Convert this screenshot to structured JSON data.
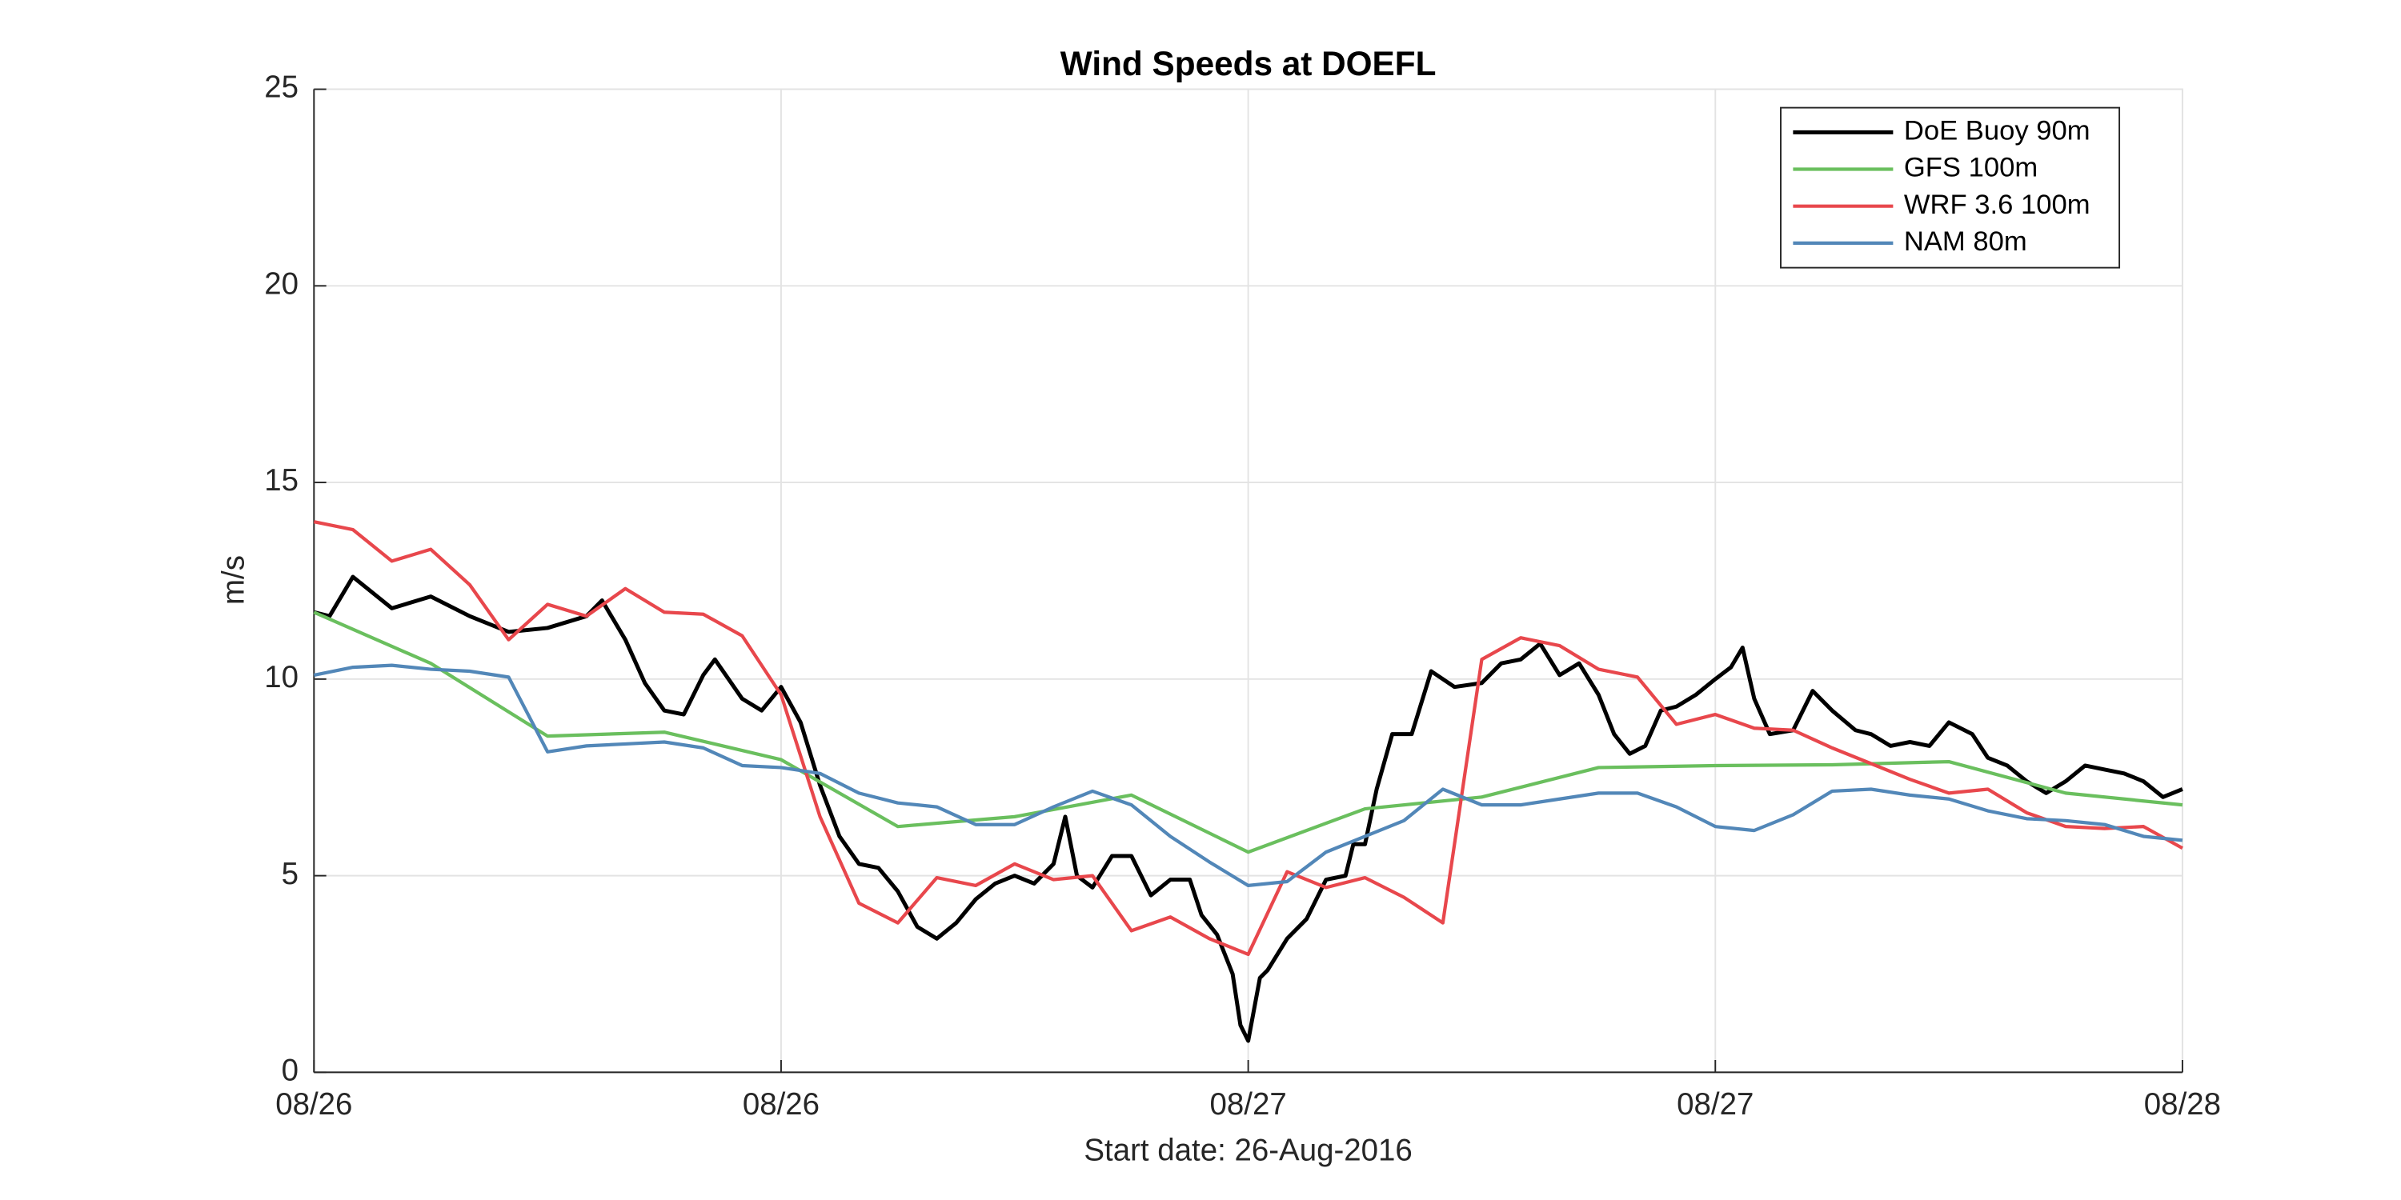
{
  "chart_data": {
    "type": "line",
    "title": "Wind Speeds at DOEFL",
    "x_label": "Start date: 26-Aug-2016",
    "y_label": "m/s",
    "xlim": [
      0,
      48
    ],
    "ylim": [
      0,
      25
    ],
    "xticks": [
      {
        "value": 0,
        "label": "08/26"
      },
      {
        "value": 12,
        "label": "08/26"
      },
      {
        "value": 24,
        "label": "08/27"
      },
      {
        "value": 36,
        "label": "08/27"
      },
      {
        "value": 48,
        "label": "08/28"
      }
    ],
    "yticks": [
      0,
      5,
      10,
      15,
      20,
      25
    ],
    "grid": true,
    "legend": "upper right",
    "series": [
      {
        "name": "DoE Buoy 90m",
        "color": "#000000",
        "x": [
          0,
          0.4,
          1,
          2,
          3,
          4,
          5,
          6,
          7,
          7.4,
          8,
          8.5,
          9,
          9.5,
          10,
          10.3,
          11,
          11.5,
          12,
          12.5,
          13,
          13.5,
          14,
          14.5,
          15,
          15.5,
          16,
          16.5,
          17,
          17.5,
          18,
          18.5,
          19,
          19.3,
          19.6,
          20,
          20.5,
          21,
          21.5,
          22,
          22.5,
          22.8,
          23.2,
          23.6,
          23.8,
          24,
          24.3,
          24.5,
          25,
          25.5,
          26,
          26.5,
          26.7,
          27,
          27.3,
          27.7,
          28.2,
          28.7,
          29.3,
          30,
          30.5,
          31,
          31.5,
          32,
          32.5,
          33,
          33.4,
          33.8,
          34.2,
          34.6,
          35,
          35.5,
          36,
          36.4,
          36.7,
          37,
          37.4,
          38,
          38.5,
          39,
          39.6,
          40,
          40.5,
          41,
          41.5,
          42,
          42.6,
          43,
          43.5,
          44,
          44.5,
          45,
          45.5,
          46,
          46.5,
          47,
          47.5,
          48
        ],
        "values": [
          11.7,
          11.6,
          12.6,
          11.8,
          12.1,
          11.6,
          11.2,
          11.3,
          11.6,
          12.0,
          11.0,
          9.9,
          9.2,
          9.1,
          10.1,
          10.5,
          9.5,
          9.2,
          9.8,
          8.9,
          7.3,
          6.0,
          5.3,
          5.2,
          4.6,
          3.7,
          3.4,
          3.8,
          4.4,
          4.8,
          5.0,
          4.8,
          5.3,
          6.5,
          5.0,
          4.7,
          5.5,
          5.5,
          4.5,
          4.9,
          4.9,
          4.0,
          3.5,
          2.5,
          1.2,
          0.8,
          2.4,
          2.6,
          3.4,
          3.9,
          4.9,
          5.0,
          5.8,
          5.8,
          7.2,
          8.6,
          8.6,
          10.2,
          9.8,
          9.9,
          10.4,
          10.5,
          10.9,
          10.1,
          10.4,
          9.6,
          8.6,
          8.1,
          8.3,
          9.2,
          9.3,
          9.6,
          10.0,
          10.3,
          10.8,
          9.5,
          8.6,
          8.7,
          9.7,
          9.2,
          8.7,
          8.6,
          8.3,
          8.4,
          8.3,
          8.9,
          8.6,
          8.0,
          7.8,
          7.4,
          7.1,
          7.4,
          7.8,
          7.7,
          7.6,
          7.4,
          7.0,
          7.2
        ]
      },
      {
        "name": "GFS 100m",
        "color": "#6abf5e",
        "x": [
          0,
          3,
          6,
          9,
          12,
          15,
          18,
          21,
          24,
          27,
          30,
          33,
          36,
          39,
          42,
          45,
          48
        ],
        "values": [
          11.7,
          10.4,
          8.55,
          8.65,
          7.95,
          6.25,
          6.5,
          7.05,
          5.6,
          6.7,
          7.0,
          7.75,
          7.8,
          7.82,
          7.9,
          7.1,
          6.8
        ]
      },
      {
        "name": "WRF 3.6 100m",
        "color": "#e8474c",
        "x": [
          0,
          1,
          2,
          3,
          4,
          5,
          6,
          7,
          8,
          9,
          10,
          11,
          12,
          13,
          14,
          15,
          16,
          17,
          18,
          19,
          20,
          21,
          22,
          23,
          24,
          25,
          26,
          27,
          28,
          29,
          30,
          31,
          32,
          33,
          34,
          35,
          36,
          37,
          38,
          39,
          40,
          41,
          42,
          43,
          44,
          45,
          46,
          47,
          48
        ],
        "values": [
          14.0,
          13.8,
          13.0,
          13.3,
          12.4,
          11.0,
          11.9,
          11.6,
          12.3,
          11.7,
          11.65,
          11.1,
          9.6,
          6.5,
          4.3,
          3.8,
          4.95,
          4.75,
          5.3,
          4.9,
          5.0,
          3.6,
          3.95,
          3.4,
          3.0,
          5.1,
          4.7,
          4.95,
          4.45,
          3.8,
          10.5,
          11.05,
          10.85,
          10.25,
          10.05,
          8.85,
          9.1,
          8.75,
          8.7,
          8.25,
          7.85,
          7.45,
          7.1,
          7.2,
          6.6,
          6.25,
          6.2,
          6.25,
          5.7
        ]
      },
      {
        "name": "NAM 80m",
        "color": "#5287b8",
        "x": [
          0,
          1,
          2,
          3,
          4,
          5,
          6,
          7,
          8,
          9,
          10,
          11,
          12,
          13,
          14,
          15,
          16,
          17,
          18,
          19,
          20,
          21,
          22,
          23,
          24,
          25,
          26,
          27,
          28,
          29,
          30,
          31,
          32,
          33,
          34,
          35,
          36,
          37,
          38,
          39,
          40,
          41,
          42,
          43,
          44,
          45,
          46,
          47,
          48
        ],
        "values": [
          10.1,
          10.3,
          10.35,
          10.25,
          10.2,
          10.05,
          8.15,
          8.3,
          8.35,
          8.4,
          8.25,
          7.8,
          7.75,
          7.6,
          7.1,
          6.85,
          6.75,
          6.3,
          6.3,
          6.75,
          7.15,
          6.8,
          6.0,
          5.35,
          4.75,
          4.85,
          5.6,
          6.0,
          6.4,
          7.2,
          6.8,
          6.8,
          6.95,
          7.1,
          7.1,
          6.75,
          6.25,
          6.15,
          6.55,
          7.15,
          7.2,
          7.05,
          6.95,
          6.65,
          6.45,
          6.4,
          6.3,
          6.0,
          5.9
        ]
      }
    ]
  }
}
